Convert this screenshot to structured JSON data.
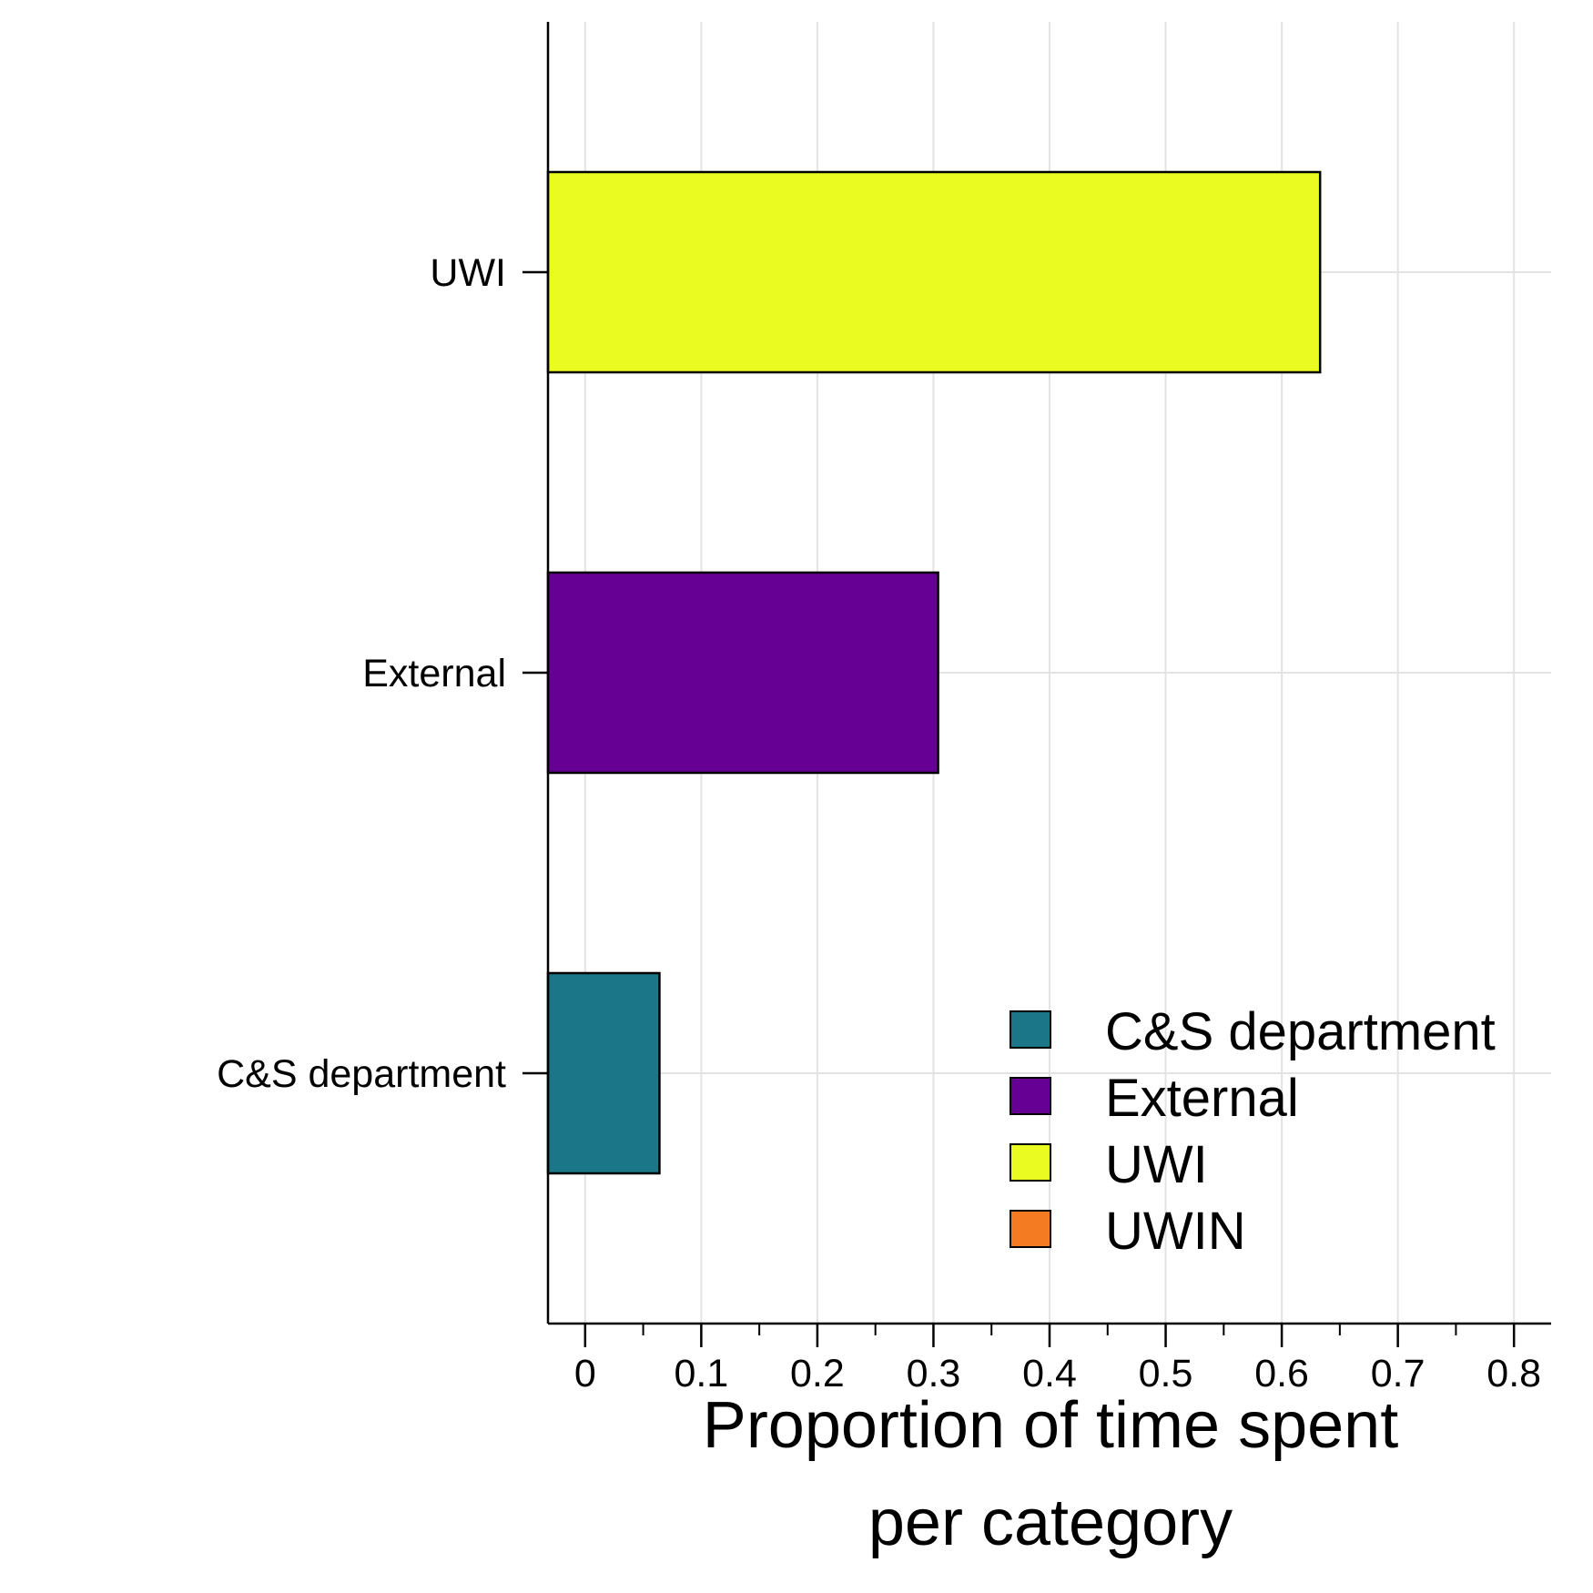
{
  "chart_data": {
    "type": "bar",
    "orientation": "horizontal",
    "categories": [
      "UWI",
      "External",
      "C&S department"
    ],
    "values": [
      0.633,
      0.304,
      0.064
    ],
    "colors": [
      "#e9fb20",
      "#660094",
      "#1b7687"
    ],
    "xlabel_lines": [
      "Proportion of time spent",
      "per category"
    ],
    "ylabel": "",
    "xlim": [
      -0.032,
      0.832
    ],
    "xticks": [
      0,
      0.1,
      0.2,
      0.3,
      0.4,
      0.5,
      0.6,
      0.7,
      0.8
    ],
    "xtick_labels": [
      "0",
      "0.1",
      "0.2",
      "0.3",
      "0.4",
      "0.5",
      "0.6",
      "0.7",
      "0.8"
    ],
    "grid": true,
    "legend_position": "bottom-right",
    "legend": [
      {
        "label": "C&S department",
        "color": "#1b7687"
      },
      {
        "label": "External",
        "color": "#660094"
      },
      {
        "label": "UWI",
        "color": "#e9fb20"
      },
      {
        "label": "UWIN",
        "color": "#f47b22"
      }
    ]
  }
}
